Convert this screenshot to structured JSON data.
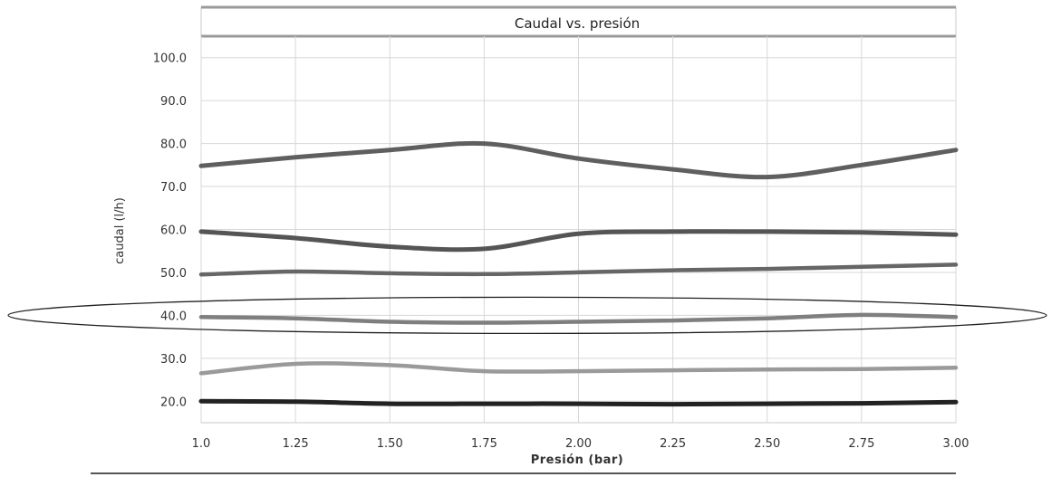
{
  "chart_data": {
    "type": "line",
    "title": "Caudal vs. presión",
    "xlabel": "Presión (bar)",
    "ylabel": "caudal (l/h)",
    "x": [
      1.0,
      1.25,
      1.5,
      1.75,
      2.0,
      2.25,
      2.5,
      2.75,
      3.0
    ],
    "x_tick_labels": [
      "1.0",
      "1.25",
      "1.50",
      "1.75",
      "2.00",
      "2.25",
      "2.50",
      "2.75",
      "3.00"
    ],
    "y_tick_labels": [
      "20.0",
      "30.0",
      "40.0",
      "50.0",
      "60.0",
      "70.0",
      "80.0",
      "90.0",
      "100.0"
    ],
    "y_ticks": [
      20,
      30,
      40,
      50,
      60,
      70,
      80,
      90,
      100
    ],
    "xlim": [
      1.0,
      3.0
    ],
    "ylim": [
      15,
      105
    ],
    "grid": true,
    "highlight": {
      "shape": "ellipse",
      "around_value": 40
    },
    "series": [
      {
        "color": "#5f5f5f",
        "width": 5,
        "values": [
          74.8,
          76.8,
          78.5,
          80.0,
          76.5,
          74.0,
          72.2,
          75.0,
          78.5
        ]
      },
      {
        "color": "#555555",
        "width": 5,
        "values": [
          59.5,
          58.0,
          56.0,
          55.5,
          59.0,
          59.5,
          59.5,
          59.3,
          58.8
        ]
      },
      {
        "color": "#666666",
        "width": 4.5,
        "values": [
          49.5,
          50.2,
          49.8,
          49.6,
          50.0,
          50.5,
          50.8,
          51.3,
          51.8
        ]
      },
      {
        "color": "#7f7f7f",
        "width": 4.5,
        "values": [
          39.6,
          39.3,
          38.5,
          38.3,
          38.5,
          38.8,
          39.3,
          40.1,
          39.6
        ]
      },
      {
        "color": "#9a9a9a",
        "width": 4.5,
        "values": [
          26.5,
          28.7,
          28.4,
          27.0,
          27.0,
          27.2,
          27.4,
          27.5,
          27.8
        ]
      },
      {
        "color": "#222222",
        "width": 5,
        "values": [
          20.0,
          19.9,
          19.4,
          19.4,
          19.4,
          19.3,
          19.4,
          19.5,
          19.8
        ]
      }
    ]
  }
}
